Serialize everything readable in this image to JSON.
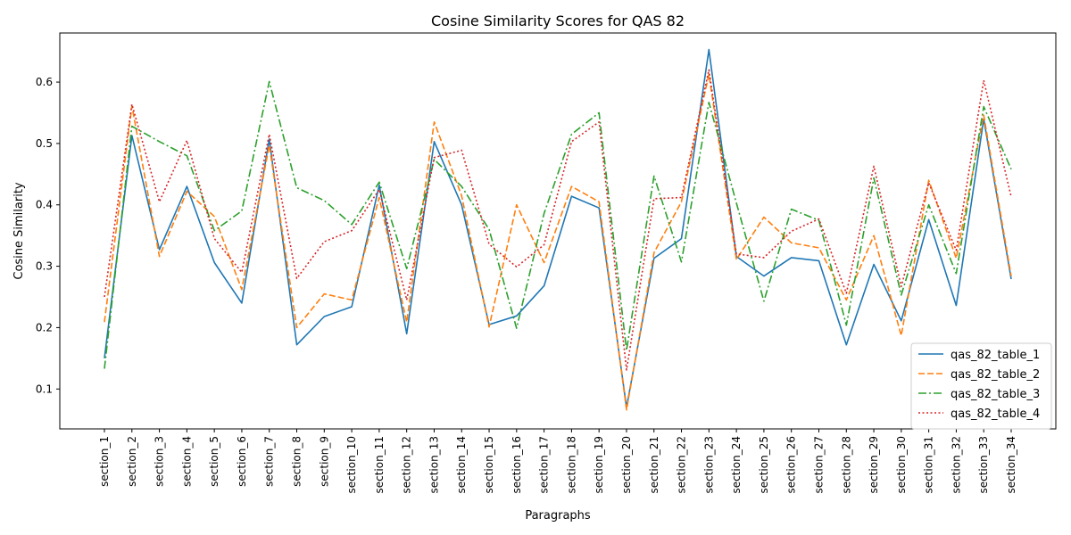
{
  "chart_data": {
    "type": "line",
    "title": "Cosine Similarity Scores for QAS 82",
    "xlabel": "Paragraphs",
    "ylabel": "Cosine Similarity",
    "ylim": [
      0.035,
      0.68
    ],
    "yticks": [
      "0.1",
      "0.2",
      "0.3",
      "0.4",
      "0.5",
      "0.6"
    ],
    "grid": false,
    "legend_position": "lower-right",
    "categories": [
      "section_1",
      "section_2",
      "section_3",
      "section_4",
      "section_5",
      "section_6",
      "section_7",
      "section_8",
      "section_9",
      "section_10",
      "section_11",
      "section_12",
      "section_13",
      "section_14",
      "section_15",
      "section_16",
      "section_17",
      "section_18",
      "section_19",
      "section_20",
      "section_21",
      "section_22",
      "section_23",
      "section_24",
      "section_25",
      "section_26",
      "section_27",
      "section_28",
      "section_29",
      "section_30",
      "section_31",
      "section_32",
      "section_33",
      "section_34"
    ],
    "series": [
      {
        "name": "qas_82_table_1",
        "color": "#1f77b4",
        "dash": "solid",
        "values": [
          0.15,
          0.513,
          0.327,
          0.43,
          0.306,
          0.24,
          0.507,
          0.172,
          0.218,
          0.234,
          0.432,
          0.19,
          0.503,
          0.4,
          0.205,
          0.219,
          0.268,
          0.414,
          0.395,
          0.07,
          0.313,
          0.345,
          0.653,
          0.316,
          0.284,
          0.314,
          0.309,
          0.172,
          0.303,
          0.211,
          0.376,
          0.236,
          0.54,
          0.279
        ]
      },
      {
        "name": "qas_82_table_2",
        "color": "#ff7f0e",
        "dash": "dashed",
        "values": [
          0.209,
          0.561,
          0.316,
          0.422,
          0.381,
          0.262,
          0.497,
          0.2,
          0.255,
          0.245,
          0.412,
          0.209,
          0.535,
          0.415,
          0.201,
          0.4,
          0.306,
          0.43,
          0.405,
          0.066,
          0.322,
          0.405,
          0.613,
          0.311,
          0.38,
          0.338,
          0.33,
          0.245,
          0.35,
          0.187,
          0.44,
          0.313,
          0.546,
          0.284
        ]
      },
      {
        "name": "qas_82_table_3",
        "color": "#2ca02c",
        "dash": "dashdot",
        "values": [
          0.133,
          0.528,
          0.503,
          0.48,
          0.358,
          0.39,
          0.601,
          0.428,
          0.407,
          0.368,
          0.437,
          0.296,
          0.474,
          0.43,
          0.36,
          0.199,
          0.386,
          0.515,
          0.55,
          0.163,
          0.447,
          0.307,
          0.567,
          0.403,
          0.243,
          0.393,
          0.375,
          0.204,
          0.444,
          0.253,
          0.4,
          0.288,
          0.56,
          0.458
        ]
      },
      {
        "name": "qas_82_table_4",
        "color": "#d62728",
        "dash": "dotted",
        "values": [
          0.25,
          0.564,
          0.405,
          0.505,
          0.345,
          0.29,
          0.515,
          0.28,
          0.34,
          0.358,
          0.425,
          0.245,
          0.477,
          0.489,
          0.336,
          0.299,
          0.335,
          0.503,
          0.535,
          0.131,
          0.41,
          0.412,
          0.62,
          0.32,
          0.314,
          0.357,
          0.377,
          0.256,
          0.463,
          0.267,
          0.436,
          0.326,
          0.603,
          0.413
        ]
      }
    ]
  }
}
